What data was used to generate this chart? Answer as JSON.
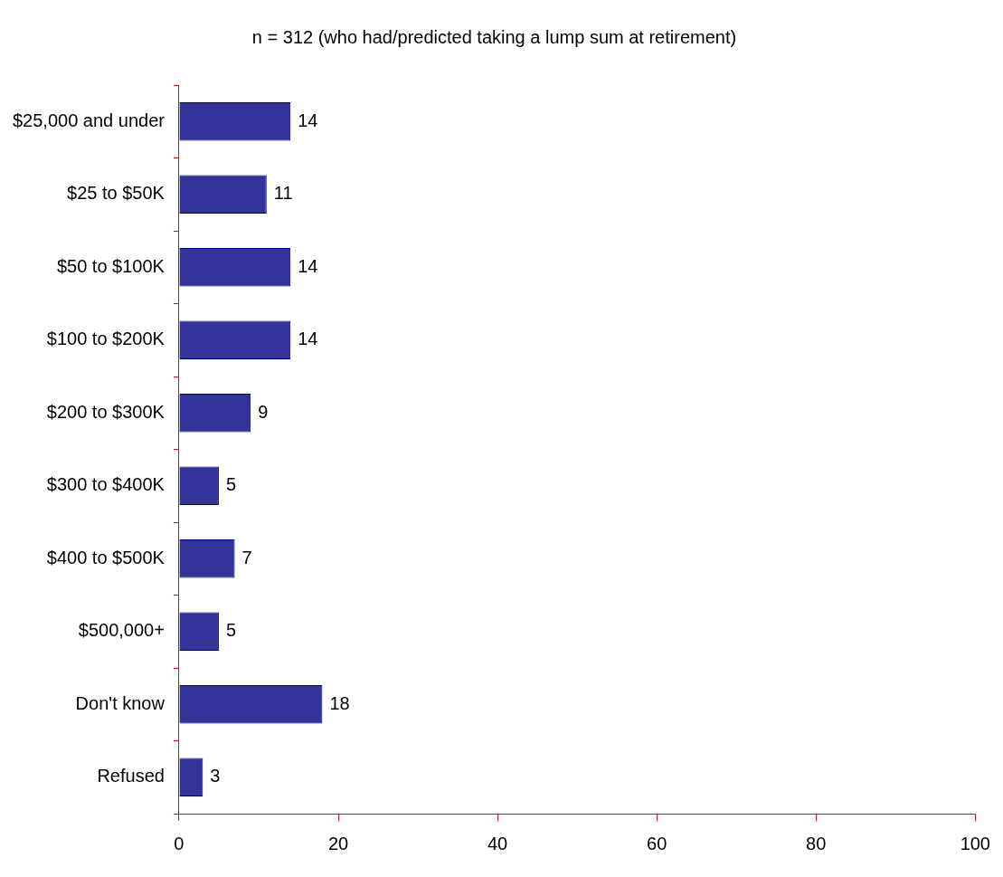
{
  "chart_data": {
    "type": "bar",
    "orientation": "horizontal",
    "title": "n = 312 (who had/predicted taking a lump sum at retirement)",
    "categories": [
      "$25,000 and under",
      "$25 to $50K",
      "$50 to $100K",
      "$100 to $200K",
      "$200 to $300K",
      "$300 to $400K",
      "$400 to $500K",
      "$500,000+",
      "Don't know",
      "Refused"
    ],
    "values": [
      14,
      11,
      14,
      14,
      9,
      5,
      7,
      5,
      18,
      3
    ],
    "color": "#333399",
    "xlim": [
      0,
      100
    ],
    "xticks": [
      0,
      20,
      40,
      60,
      80,
      100
    ],
    "grid": false,
    "legend": false,
    "data_labels": true
  }
}
